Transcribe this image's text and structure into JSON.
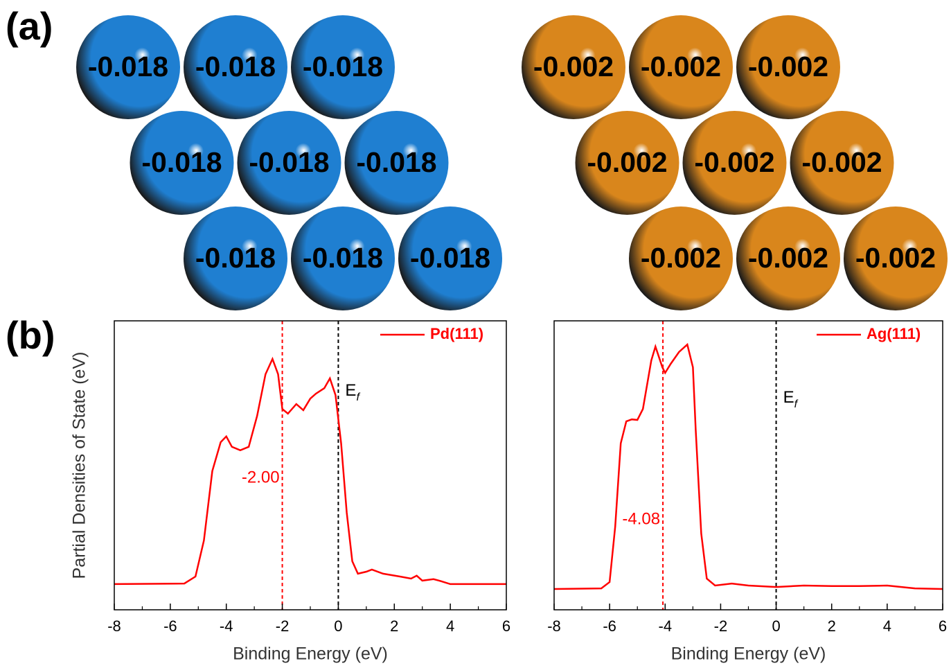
{
  "figure": {
    "label_a": "(a)",
    "label_b": "(b)"
  },
  "spheres": [
    {
      "color": "#1f7fd1",
      "charges": [
        -0.018,
        -0.018,
        -0.018,
        -0.018,
        -0.018,
        -0.018,
        -0.018,
        -0.018,
        -0.018
      ]
    },
    {
      "color": "#d9861c",
      "charges": [
        -0.002,
        -0.002,
        -0.002,
        -0.002,
        -0.002,
        -0.002,
        -0.002,
        -0.002,
        -0.002
      ]
    }
  ],
  "chart_data": [
    {
      "type": "line",
      "xlabel": "Binding Energy (eV)",
      "ylabel": "Partial Densities of State (eV)",
      "x": [
        -8,
        -5.5,
        -5.1,
        -4.8,
        -4.5,
        -4.2,
        -4.0,
        -3.8,
        -3.5,
        -3.2,
        -2.9,
        -2.6,
        -2.35,
        -2.15,
        -2.0,
        -1.8,
        -1.5,
        -1.25,
        -1.0,
        -0.8,
        -0.5,
        -0.3,
        -0.1,
        0.1,
        0.3,
        0.5,
        0.7,
        1.0,
        1.2,
        1.6,
        2.2,
        2.6,
        2.8,
        3.0,
        3.4,
        3.6,
        4.0,
        6
      ],
      "series": [
        {
          "name": "Pd(111)",
          "color": "#ff0000",
          "values": [
            0.089,
            0.091,
            0.115,
            0.24,
            0.48,
            0.58,
            0.6,
            0.564,
            0.552,
            0.564,
            0.671,
            0.815,
            0.868,
            0.815,
            0.695,
            0.679,
            0.712,
            0.691,
            0.731,
            0.748,
            0.767,
            0.801,
            0.743,
            0.576,
            0.336,
            0.168,
            0.125,
            0.132,
            0.139,
            0.125,
            0.115,
            0.108,
            0.118,
            0.101,
            0.106,
            0.101,
            0.089,
            0.089
          ]
        }
      ],
      "xlim": [
        -8,
        6
      ],
      "xticks": [
        -8,
        -6,
        -4,
        -2,
        0,
        2,
        4,
        6
      ],
      "ylim": [
        0,
        1
      ],
      "legend": "upper right",
      "center_line": {
        "x": -2,
        "label": "-2.00",
        "color": "#ff0000"
      },
      "fermi_line": {
        "x": 0,
        "label": "E",
        "sub": "f",
        "color": "#000000"
      }
    },
    {
      "type": "line",
      "xlabel": "Binding Energy (eV)",
      "x": [
        -8,
        -6.3,
        -6.0,
        -5.8,
        -5.6,
        -5.4,
        -5.2,
        -5.0,
        -4.8,
        -4.5,
        -4.35,
        -4.1,
        -4.0,
        -3.8,
        -3.5,
        -3.2,
        -3.0,
        -2.9,
        -2.7,
        -2.5,
        -2.2,
        -1.6,
        -1.0,
        0,
        1,
        2,
        3,
        4,
        5,
        6
      ],
      "series": [
        {
          "name": "Ag(111)",
          "color": "#ff0000",
          "values": [
            0.072,
            0.074,
            0.096,
            0.288,
            0.576,
            0.652,
            0.659,
            0.657,
            0.695,
            0.863,
            0.911,
            0.839,
            0.82,
            0.851,
            0.892,
            0.918,
            0.839,
            0.624,
            0.264,
            0.108,
            0.084,
            0.091,
            0.084,
            0.079,
            0.084,
            0.082,
            0.082,
            0.084,
            0.074,
            0.072
          ]
        }
      ],
      "xlim": [
        -8,
        6
      ],
      "xticks": [
        -8,
        -6,
        -4,
        -2,
        0,
        2,
        4,
        6
      ],
      "ylim": [
        0,
        1
      ],
      "legend": "upper right",
      "center_line": {
        "x": -4.08,
        "label": "-4.08",
        "color": "#ff0000"
      },
      "fermi_line": {
        "x": 0,
        "label": "E",
        "sub": "f",
        "color": "#000000"
      }
    }
  ]
}
